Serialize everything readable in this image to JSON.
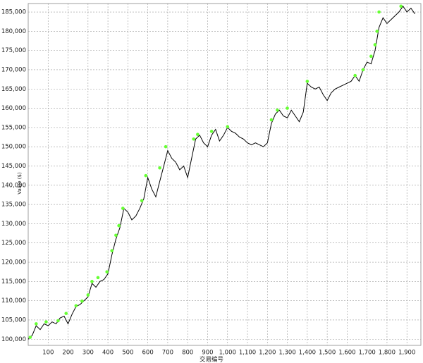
{
  "chart_data": {
    "type": "line",
    "x_label": "交易编号",
    "y_label": "Value ($)",
    "xlim": [
      0,
      1970
    ],
    "ylim": [
      98400,
      187200
    ],
    "xticks": [
      100,
      200,
      300,
      400,
      500,
      600,
      700,
      800,
      900,
      {
        "value": 1000,
        "label": "1,000"
      },
      {
        "value": 1100,
        "label": "1,100"
      },
      {
        "value": 1200,
        "label": "1,200"
      },
      {
        "value": 1300,
        "label": "1,300"
      },
      {
        "value": 1400,
        "label": "1,400"
      },
      {
        "value": 1500,
        "label": "1,500"
      },
      {
        "value": 1600,
        "label": "1,600"
      },
      {
        "value": 1700,
        "label": "1,700"
      },
      {
        "value": 1800,
        "label": "1,800"
      },
      {
        "value": 1900,
        "label": "1,900"
      }
    ],
    "yticks": [
      {
        "value": 100000,
        "label": "100,000"
      },
      {
        "value": 105000,
        "label": "105,000"
      },
      {
        "value": 110000,
        "label": "110,000"
      },
      {
        "value": 115000,
        "label": "115,000"
      },
      {
        "value": 120000,
        "label": "120,000"
      },
      {
        "value": 125000,
        "label": "125,000"
      },
      {
        "value": 130000,
        "label": "130,000"
      },
      {
        "value": 135000,
        "label": "135,000"
      },
      {
        "value": 140000,
        "label": "140,000"
      },
      {
        "value": 145000,
        "label": "145,000"
      },
      {
        "value": 150000,
        "label": "150,000"
      },
      {
        "value": 155000,
        "label": "155,000"
      },
      {
        "value": 160000,
        "label": "160,000"
      },
      {
        "value": 165000,
        "label": "165,000"
      },
      {
        "value": 170000,
        "label": "170,000"
      },
      {
        "value": 175000,
        "label": "175,000"
      },
      {
        "value": 180000,
        "label": "180,000"
      },
      {
        "value": 185000,
        "label": "185,000"
      }
    ],
    "grid": true,
    "series": [
      {
        "color": "#000000",
        "mode": "line",
        "x": [
          0,
          20,
          40,
          60,
          80,
          100,
          120,
          140,
          160,
          180,
          200,
          220,
          240,
          260,
          280,
          300,
          320,
          340,
          360,
          380,
          400,
          420,
          440,
          460,
          480,
          500,
          520,
          540,
          560,
          580,
          600,
          620,
          640,
          660,
          680,
          700,
          720,
          740,
          760,
          780,
          800,
          820,
          840,
          860,
          880,
          900,
          920,
          940,
          960,
          980,
          1000,
          1020,
          1040,
          1060,
          1080,
          1100,
          1120,
          1140,
          1160,
          1180,
          1200,
          1220,
          1240,
          1260,
          1280,
          1300,
          1320,
          1340,
          1360,
          1380,
          1400,
          1420,
          1440,
          1460,
          1480,
          1500,
          1520,
          1540,
          1560,
          1580,
          1600,
          1620,
          1640,
          1660,
          1680,
          1700,
          1720,
          1740,
          1760,
          1780,
          1800,
          1820,
          1840,
          1860,
          1880,
          1900,
          1920,
          1940
        ],
        "values": [
          100000,
          101000,
          103500,
          102500,
          104000,
          103500,
          104500,
          104000,
          105500,
          106000,
          104000,
          106500,
          108500,
          109000,
          110000,
          111000,
          114500,
          113500,
          115000,
          115500,
          117000,
          122000,
          126000,
          129000,
          134000,
          133000,
          131000,
          132000,
          134000,
          136500,
          142000,
          139000,
          137000,
          141000,
          145000,
          149000,
          147000,
          146000,
          144000,
          145000,
          142000,
          147000,
          152000,
          153000,
          151000,
          150000,
          153000,
          154500,
          151500,
          153000,
          155000,
          154000,
          153500,
          152500,
          152000,
          151000,
          150500,
          151000,
          150500,
          150000,
          151000,
          156000,
          158500,
          159500,
          158000,
          157500,
          159500,
          158000,
          156500,
          159000,
          166500,
          165500,
          165000,
          165500,
          163500,
          162000,
          164000,
          165000,
          165500,
          166000,
          166500,
          167000,
          168500,
          167000,
          170000,
          172000,
          171500,
          175000,
          181000,
          183500,
          182000,
          183000,
          184000,
          185000,
          186500,
          185000,
          186000,
          184500
        ]
      },
      {
        "color": "#66ff33",
        "mode": "markers",
        "x": [
          10,
          40,
          90,
          150,
          190,
          240,
          270,
          300,
          320,
          350,
          395,
          420,
          440,
          455,
          475,
          570,
          590,
          660,
          690,
          830,
          850,
          920,
          1000,
          1220,
          1250,
          1300,
          1400,
          1640,
          1680,
          1720,
          1740,
          1750,
          1760,
          1870
        ],
        "values": [
          100500,
          104000,
          104500,
          104800,
          106700,
          108700,
          109900,
          111500,
          115000,
          116000,
          117500,
          123000,
          127000,
          129500,
          134000,
          136000,
          142500,
          144500,
          150000,
          152000,
          153200,
          154000,
          155200,
          157000,
          159500,
          160000,
          167000,
          168500,
          170000,
          173500,
          176500,
          180000,
          185000,
          186500
        ]
      }
    ]
  }
}
